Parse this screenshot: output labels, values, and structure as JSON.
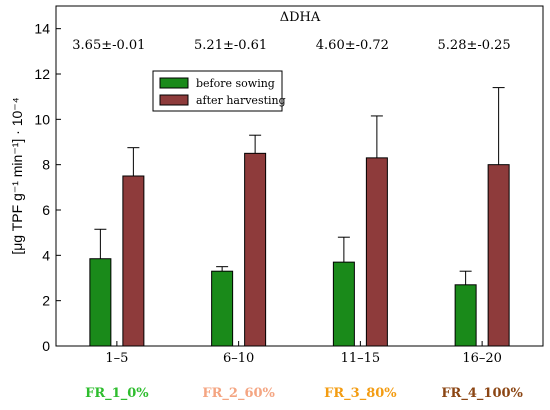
{
  "chart_data": {
    "type": "bar",
    "title": "ΔDHA",
    "ylabel": "[μg TPF g⁻¹ min⁻¹] · 10⁻⁴",
    "ylim": [
      0,
      15
    ],
    "yticks": [
      0,
      2,
      4,
      6,
      8,
      10,
      12,
      14
    ],
    "categories": [
      "1–5",
      "6–10",
      "11–15",
      "16–20"
    ],
    "group_labels": [
      {
        "text": "FR_1_0%",
        "color": "#2ebd2e"
      },
      {
        "text": "FR_2_60%",
        "color": "#f4a582"
      },
      {
        "text": "FR_3_80%",
        "color": "#f39c12"
      },
      {
        "text": "FR_4_100%",
        "color": "#8b4513"
      }
    ],
    "annotations": [
      "3.65±-0.01",
      "5.21±-0.61",
      "4.60±-0.72",
      "5.28±-0.25"
    ],
    "series": [
      {
        "name": "before sowing",
        "color": "#1a8a1a",
        "values": [
          3.85,
          3.3,
          3.7,
          2.7
        ],
        "errors": [
          1.3,
          0.2,
          1.1,
          0.6
        ]
      },
      {
        "name": "after harvesting",
        "color": "#8e3b3b",
        "values": [
          7.5,
          8.5,
          8.3,
          8.0
        ],
        "errors": [
          1.25,
          0.8,
          1.85,
          3.4
        ]
      }
    ],
    "legend_position": "top-left",
    "grid": false
  }
}
